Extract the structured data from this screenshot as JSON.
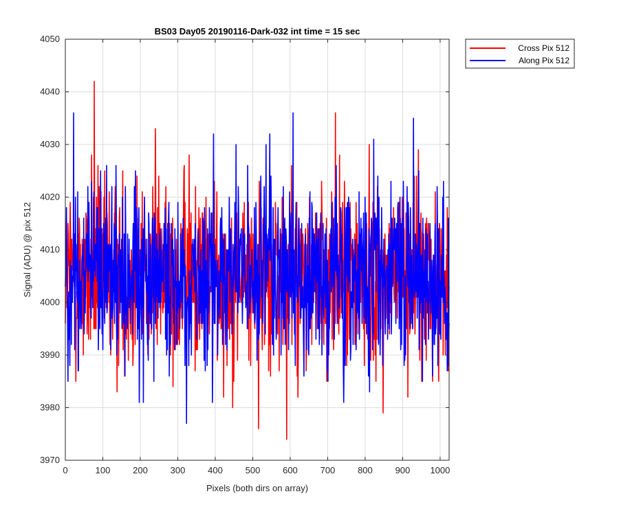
{
  "chart_data": {
    "type": "line",
    "title": "BS03 Day05 20190116-Dark-032 int time = 15 sec",
    "xlabel": "Pixels (both dirs on array)",
    "ylabel": "Signal (ADU) @ pix 512",
    "xlim": [
      0,
      1024
    ],
    "ylim": [
      3970,
      4050
    ],
    "xticks": [
      0,
      100,
      200,
      300,
      400,
      500,
      600,
      700,
      800,
      900,
      1000
    ],
    "yticks": [
      3970,
      3980,
      3990,
      4000,
      4010,
      4020,
      4030,
      4040,
      4050
    ],
    "grid": true,
    "legend_position": "outside top-right",
    "series": [
      {
        "name": "Cross Pix 512",
        "color": "#ff0000",
        "n_points": 1024,
        "mean": 4005,
        "noise_range": [
          3974,
          4042
        ],
        "notable_points": [
          [
            77,
            4042
          ],
          [
            240,
            4033
          ],
          [
            515,
            3976
          ],
          [
            590,
            3974
          ],
          [
            720,
            4036
          ],
          [
            620,
            3982
          ],
          [
            930,
            4024
          ],
          [
            70,
            4028
          ],
          [
            105,
            4025
          ],
          [
            330,
            4028
          ]
        ]
      },
      {
        "name": "Along Pix 512",
        "color": "#0000ff",
        "n_points": 1024,
        "mean": 4005,
        "noise_range": [
          3977,
          4036
        ],
        "notable_points": [
          [
            22,
            4036
          ],
          [
            607,
            4036
          ],
          [
            928,
            4035
          ],
          [
            323,
            3977
          ],
          [
            197,
            3981
          ],
          [
            392,
            3981
          ],
          [
            455,
            4030
          ],
          [
            545,
            4032
          ],
          [
            700,
            3985
          ],
          [
            35,
            3987
          ]
        ]
      }
    ]
  }
}
